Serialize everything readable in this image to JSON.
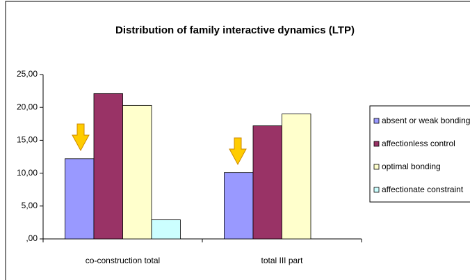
{
  "chart_data": {
    "type": "bar",
    "title": "Distribution of family interactive dynamics (LTP)",
    "categories": [
      "co-construction total",
      "total III part"
    ],
    "series": [
      {
        "name": "absent or weak bonding",
        "color": "#9999ff",
        "values": [
          12.2,
          10.1
        ]
      },
      {
        "name": "affectionless control",
        "color": "#993366",
        "values": [
          22.1,
          17.2
        ]
      },
      {
        "name": "optimal bonding",
        "color": "#ffffcc",
        "values": [
          20.3,
          19.0
        ]
      },
      {
        "name": "affectionate constraint",
        "color": "#ccffff",
        "values": [
          2.9,
          null
        ]
      }
    ],
    "ylim": [
      0,
      25
    ],
    "yticks": [
      {
        "value": 0,
        "label": ",00"
      },
      {
        "value": 5,
        "label": "5,00"
      },
      {
        "value": 10,
        "label": "10,00"
      },
      {
        "value": 15,
        "label": "15,00"
      },
      {
        "value": 20,
        "label": "20,00"
      },
      {
        "value": 25,
        "label": "25,00"
      }
    ],
    "grid": false,
    "legend": "right"
  }
}
